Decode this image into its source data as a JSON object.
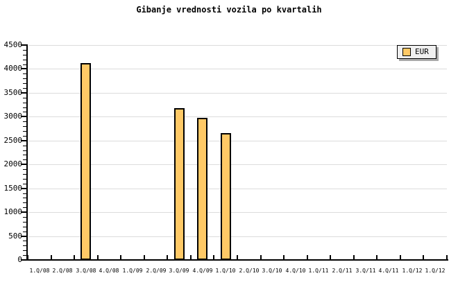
{
  "title": "Gibanje vrednosti vozila po kvartalih",
  "legend": {
    "label": "EUR",
    "swatch_color": "#ffc966",
    "position": "top-right"
  },
  "colors": {
    "bar_fill": "#ffc966",
    "bar_border": "#000000",
    "gridline": "#dcdcdc",
    "axis": "#000000",
    "legend_bg": "#f0f0f0",
    "legend_shadow": "#a9a9a9",
    "background": "#ffffff",
    "text": "#000000"
  },
  "chart_data": {
    "type": "bar",
    "title": "Gibanje vrednosti vozila po kvartalih",
    "categories": [
      "1.Q/08",
      "2.Q/08",
      "3.Q/08",
      "4.Q/08",
      "1.Q/09",
      "2.Q/09",
      "3.Q/09",
      "4.Q/09",
      "1.Q/10",
      "2.Q/10",
      "3.Q/10",
      "4.Q/10",
      "1.Q/11",
      "2.Q/11",
      "3.Q/11",
      "4.Q/11",
      "1.Q/12",
      "1.Q/12"
    ],
    "series": [
      {
        "name": "EUR",
        "values": [
          null,
          null,
          4120,
          null,
          null,
          null,
          3180,
          2970,
          2650,
          null,
          null,
          null,
          null,
          null,
          null,
          null,
          null,
          null
        ]
      }
    ],
    "xlabel": "",
    "ylabel": "",
    "ylim": [
      0,
      4500
    ],
    "y_major_step": 500,
    "y_minor_step": 100,
    "y_tick_labels": [
      "0",
      "500",
      "1000",
      "1500",
      "2000",
      "2500",
      "3000",
      "3500",
      "4000",
      "4500"
    ],
    "grid": "horizontal-major",
    "legend_position": "top-right"
  }
}
